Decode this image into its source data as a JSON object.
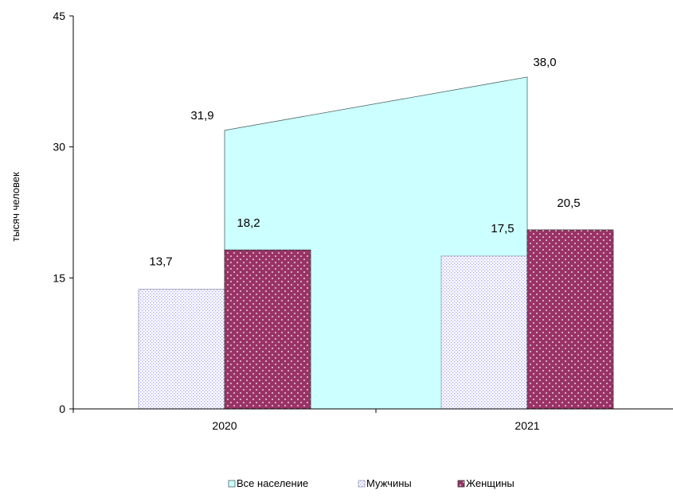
{
  "chart_data": {
    "type": "bar",
    "title": "",
    "xlabel": "",
    "ylabel": "тысяч человек",
    "ylim": [
      0,
      45
    ],
    "yticks": [
      "0",
      "15",
      "30",
      "45"
    ],
    "categories": [
      "2020",
      "2021"
    ],
    "series": [
      {
        "name": "Все население",
        "kind": "area",
        "values": [
          31.9,
          38.0
        ],
        "labels": [
          "31,9",
          "38,0"
        ],
        "color": "#ccffff"
      },
      {
        "name": "Мужчины",
        "kind": "bar",
        "values": [
          13.7,
          17.5
        ],
        "labels": [
          "13,7",
          "17,5"
        ],
        "color": "#ccccff"
      },
      {
        "name": "Женщины",
        "kind": "bar",
        "values": [
          18.2,
          20.5
        ],
        "labels": [
          "18,2",
          "20,5"
        ],
        "color": "#993366"
      }
    ],
    "grid": false,
    "legend": "bottom"
  }
}
